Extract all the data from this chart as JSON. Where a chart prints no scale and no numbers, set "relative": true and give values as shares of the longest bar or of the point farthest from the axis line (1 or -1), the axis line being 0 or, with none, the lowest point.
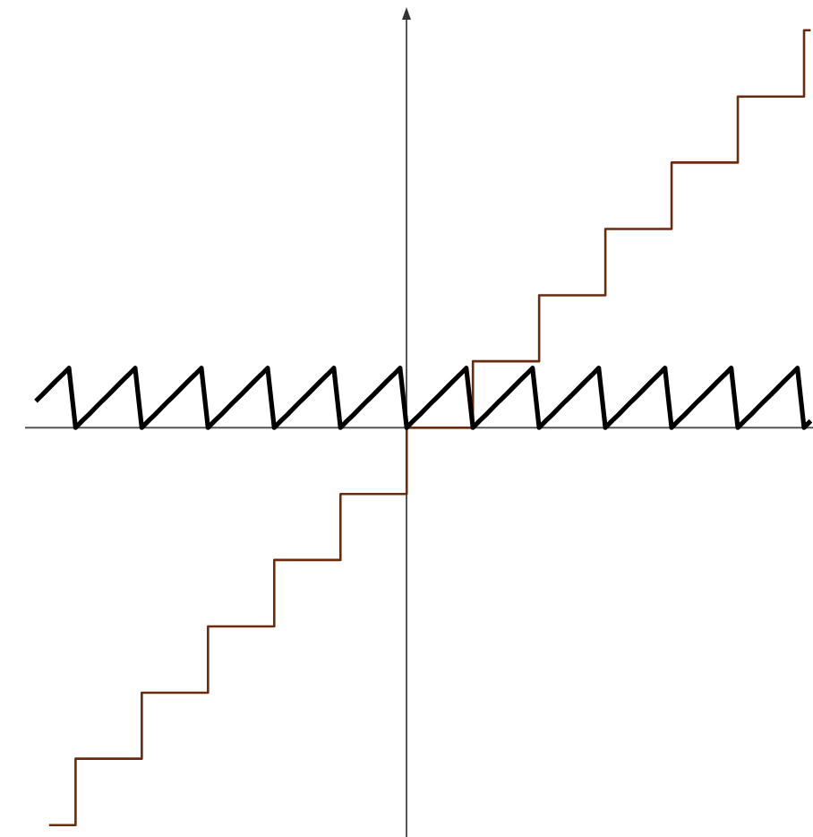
{
  "chart_data": {
    "type": "line",
    "relative": true,
    "categories": [
      null,
      null,
      null,
      null,
      null,
      null,
      null,
      null,
      null,
      null,
      null,
      null,
      null,
      null,
      null,
      null,
      null,
      null,
      null,
      null,
      null,
      null,
      null,
      null,
      null,
      null,
      null,
      null,
      null,
      null,
      null,
      null,
      null,
      null,
      null,
      null,
      null,
      null,
      null,
      null,
      null,
      null,
      null,
      null,
      null,
      null,
      null,
      null,
      null,
      null,
      null,
      null,
      null,
      null,
      null,
      null,
      null,
      null,
      null,
      null,
      null,
      null,
      null,
      null,
      null,
      null,
      null,
      null,
      null,
      null,
      null,
      null,
      null,
      null,
      null,
      null,
      null,
      null,
      null,
      null,
      null,
      null,
      null,
      null,
      null,
      null,
      null,
      null,
      null,
      null,
      null,
      null,
      null,
      null,
      null,
      null,
      null,
      null,
      null,
      null,
      null,
      null,
      null,
      null,
      null,
      null,
      null,
      null,
      null,
      null,
      null,
      null,
      null,
      null,
      null,
      null,
      null,
      null
    ],
    "series": [
      {
        "type": "step",
        "color": "#6b2a0a",
        "values": [
          null,
          null,
          -1,
          -1,
          -1,
          -1,
          -0.833,
          -0.833,
          -0.833,
          -0.833,
          -0.833,
          -0.833,
          -0.833,
          -0.833,
          -0.833,
          -0.833,
          -0.667,
          -0.667,
          -0.667,
          -0.667,
          -0.667,
          -0.667,
          -0.667,
          -0.667,
          -0.667,
          -0.667,
          -0.5,
          -0.5,
          -0.5,
          -0.5,
          -0.5,
          -0.5,
          -0.5,
          -0.5,
          -0.5,
          -0.5,
          -0.333,
          -0.333,
          -0.333,
          -0.333,
          -0.333,
          -0.333,
          -0.333,
          -0.333,
          -0.333,
          -0.333,
          -0.167,
          -0.167,
          -0.167,
          -0.167,
          -0.167,
          -0.167,
          -0.167,
          -0.167,
          -0.167,
          -0.167,
          0,
          0,
          0,
          0,
          0,
          0,
          0,
          0,
          0,
          0,
          0.167,
          0.167,
          0.167,
          0.167,
          0.167,
          0.167,
          0.167,
          0.167,
          0.167,
          0.167,
          0.333,
          0.333,
          0.333,
          0.333,
          0.333,
          0.333,
          0.333,
          0.333,
          0.333,
          0.333,
          0.5,
          0.5,
          0.5,
          0.5,
          0.5,
          0.5,
          0.5,
          0.5,
          0.5,
          0.5,
          0.667,
          0.667,
          0.667,
          0.667,
          0.667,
          0.667,
          0.667,
          0.667,
          0.667,
          0.667,
          0.833,
          0.833,
          0.833,
          0.833,
          0.833,
          0.833,
          0.833,
          0.833,
          0.833,
          0.833,
          1,
          1
        ]
      },
      {
        "type": "line",
        "color": "#000000",
        "values": [
          0.067,
          0.083,
          0.1,
          0.117,
          0.133,
          0.15,
          0,
          0.017,
          0.033,
          0.05,
          0.067,
          0.083,
          0.1,
          0.117,
          0.133,
          0.15,
          0,
          0.017,
          0.033,
          0.05,
          0.067,
          0.083,
          0.1,
          0.117,
          0.133,
          0.15,
          0,
          0.017,
          0.033,
          0.05,
          0.067,
          0.083,
          0.1,
          0.117,
          0.133,
          0.15,
          0,
          0.017,
          0.033,
          0.05,
          0.067,
          0.083,
          0.1,
          0.117,
          0.133,
          0.15,
          0,
          0.017,
          0.033,
          0.05,
          0.067,
          0.083,
          0.1,
          0.117,
          0.133,
          0.15,
          0,
          0.017,
          0.033,
          0.05,
          0.067,
          0.083,
          0.1,
          0.117,
          0.133,
          0.15,
          0,
          0.017,
          0.033,
          0.05,
          0.067,
          0.083,
          0.1,
          0.117,
          0.133,
          0.15,
          0,
          0.017,
          0.033,
          0.05,
          0.067,
          0.083,
          0.1,
          0.117,
          0.133,
          0.15,
          0,
          0.017,
          0.033,
          0.05,
          0.067,
          0.083,
          0.1,
          0.117,
          0.133,
          0.15,
          0,
          0.017,
          0.033,
          0.05,
          0.067,
          0.083,
          0.1,
          0.117,
          0.133,
          0.15,
          0,
          0.017,
          0.033,
          0.05,
          0.067,
          0.083,
          0.1,
          0.117,
          0.133,
          0.15,
          0,
          0.017
        ]
      }
    ]
  }
}
